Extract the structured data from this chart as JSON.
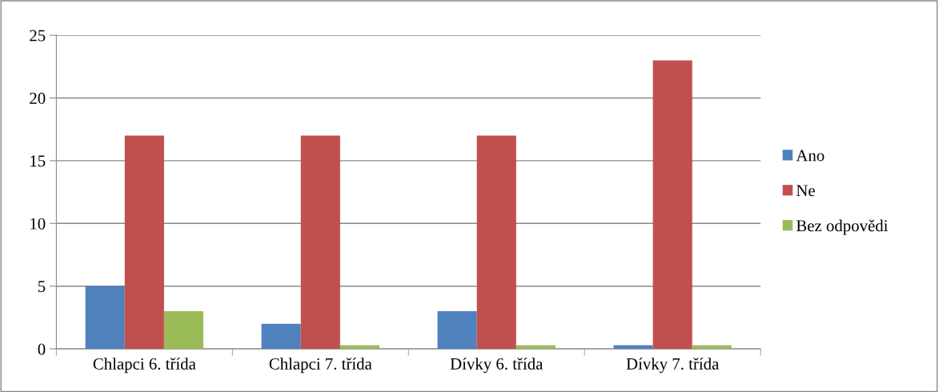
{
  "chart_data": {
    "type": "bar",
    "categories": [
      "Chlapci 6. třída",
      "Chlapci 7. třída",
      "Dívky 6. třída",
      "Dívky 7. třída"
    ],
    "series": [
      {
        "name": "Ano",
        "color": "#4f81bd",
        "values": [
          5,
          2,
          3,
          0.3
        ]
      },
      {
        "name": "Ne",
        "color": "#c0504d",
        "values": [
          17,
          17,
          17,
          23
        ]
      },
      {
        "name": "Bez odpovědi",
        "color": "#9bbb59",
        "values": [
          3,
          0.3,
          0.3,
          0.3
        ]
      }
    ],
    "ylim": [
      0,
      25
    ],
    "yticks": [
      0,
      5,
      10,
      15,
      20,
      25
    ],
    "grid": "y",
    "legend": "right"
  }
}
